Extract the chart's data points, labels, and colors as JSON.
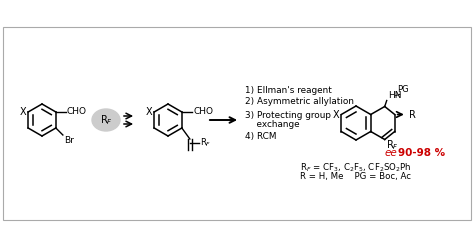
{
  "background_color": "#ffffff",
  "border_color": "#aaaaaa",
  "text_color": "#000000",
  "red_color": "#cc0000",
  "figure_width": 4.74,
  "figure_height": 2.48,
  "dpi": 100,
  "reagent_circle_color": "#cccccc",
  "step1": "1) Ellman's reagent",
  "step2": "2) Asymmetric allylation",
  "step3": "3) Protecting group",
  "step3b": "    exchange",
  "step4": "4) RCM",
  "ee_label": "ee",
  "ee_value": "90-98 %",
  "rf_def": "R$_F$ = CF$_3$, C$_2$F$_5$, CF$_2$SO$_2$Ph",
  "r_pg_def": "R = H, Me    PG = Boc, Ac"
}
